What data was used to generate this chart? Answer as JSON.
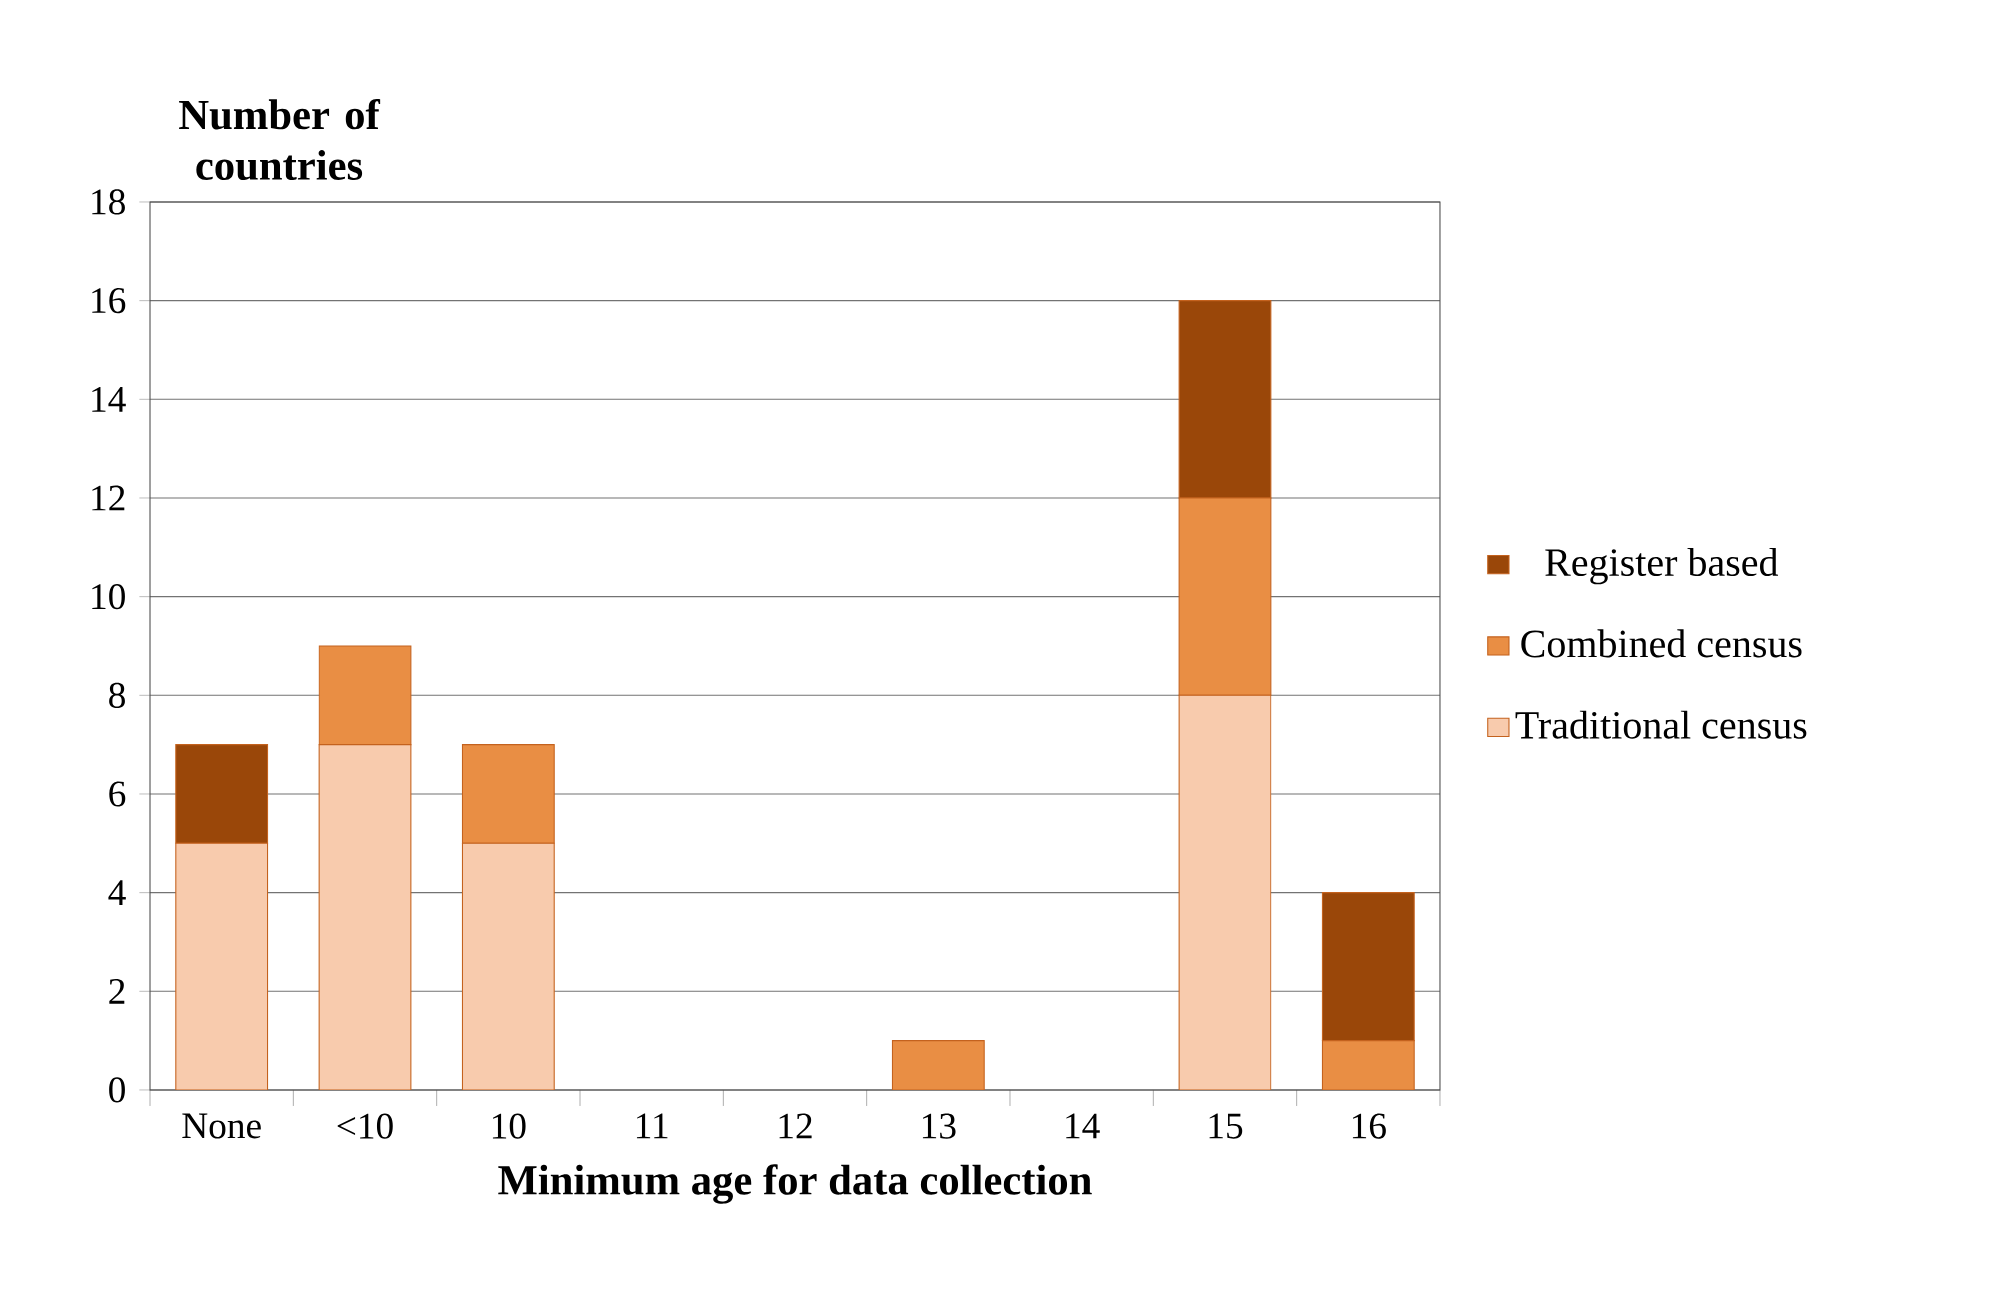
{
  "chart_data": {
    "type": "bar",
    "stacked": true,
    "xlabel": "Minimum age for data collection",
    "ylabel": "Number of countries",
    "categories": [
      "None",
      "<10",
      "10",
      "11",
      "12",
      "13",
      "14",
      "15",
      "16"
    ],
    "series": [
      {
        "name": "Traditional census",
        "color": "#f8cbad",
        "values": [
          5,
          7,
          5,
          0,
          0,
          0,
          0,
          8,
          0
        ]
      },
      {
        "name": "Combined census",
        "color": "#e98e44",
        "values": [
          0,
          2,
          2,
          0,
          0,
          1,
          0,
          4,
          1
        ]
      },
      {
        "name": "Register based",
        "color": "#9a4709",
        "values": [
          2,
          0,
          0,
          0,
          0,
          0,
          0,
          4,
          3
        ]
      }
    ],
    "ylim": [
      0,
      18
    ],
    "yticks": [
      0,
      2,
      4,
      6,
      8,
      10,
      12,
      14,
      16,
      18
    ],
    "grid": "y",
    "legend": "right"
  }
}
